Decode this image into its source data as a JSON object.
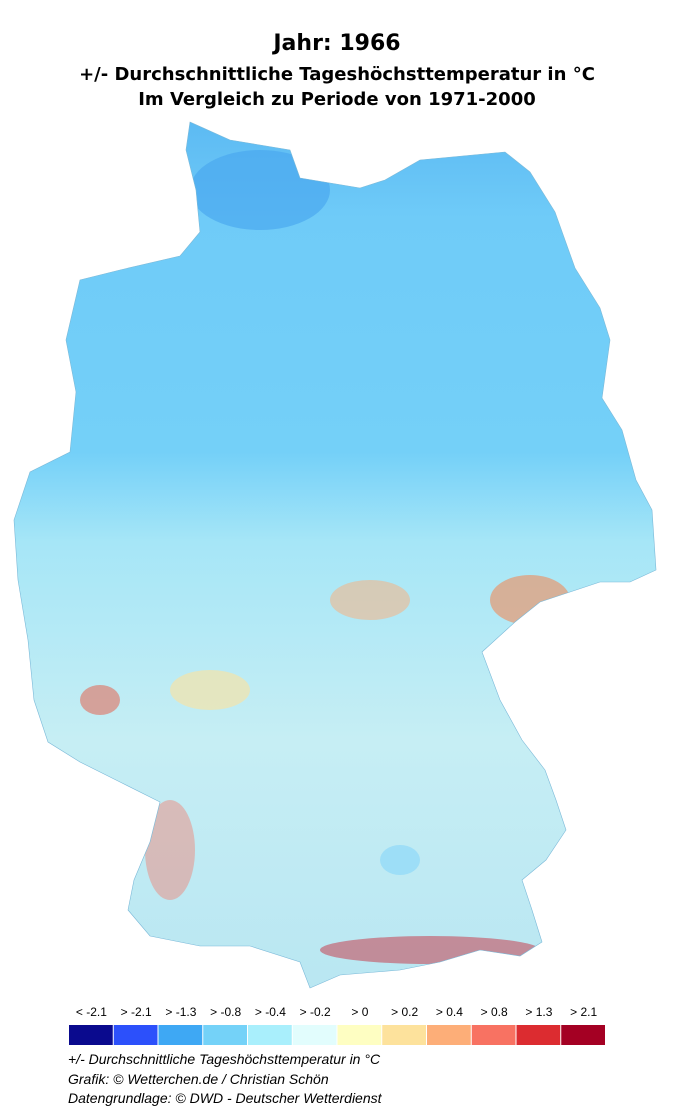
{
  "header": {
    "title": "Jahr: 1966",
    "lines": [
      "+/- Durchschnittliche Tageshöchsttemperatur in °C",
      "Im Vergleich zu Periode von 1971-2000"
    ]
  },
  "legend": {
    "items": [
      {
        "label": "< -2.1",
        "color": "#0a0a8e"
      },
      {
        "label": "> -2.1",
        "color": "#2c50fb"
      },
      {
        "label": "> -1.3",
        "color": "#3ea8f4"
      },
      {
        "label": "> -0.8",
        "color": "#74d2f8"
      },
      {
        "label": "> -0.4",
        "color": "#a9effc"
      },
      {
        "label": "> -0.2",
        "color": "#e2fdfd"
      },
      {
        "label": "> 0",
        "color": "#fefec2"
      },
      {
        "label": "> 0.2",
        "color": "#fde29c"
      },
      {
        "label": "> 0.4",
        "color": "#fdae78"
      },
      {
        "label": "> 0.8",
        "color": "#f87262"
      },
      {
        "label": "> 1.3",
        "color": "#dc2c30"
      },
      {
        "label": "> 2.1",
        "color": "#a40023"
      }
    ]
  },
  "footer": [
    "+/- Durchschnittliche Tageshöchsttemperatur in °C",
    "Grafik: © Wetterchen.de / Christian Schön",
    "Datengrundlage: © DWD - Deutscher Wetterdienst"
  ]
}
